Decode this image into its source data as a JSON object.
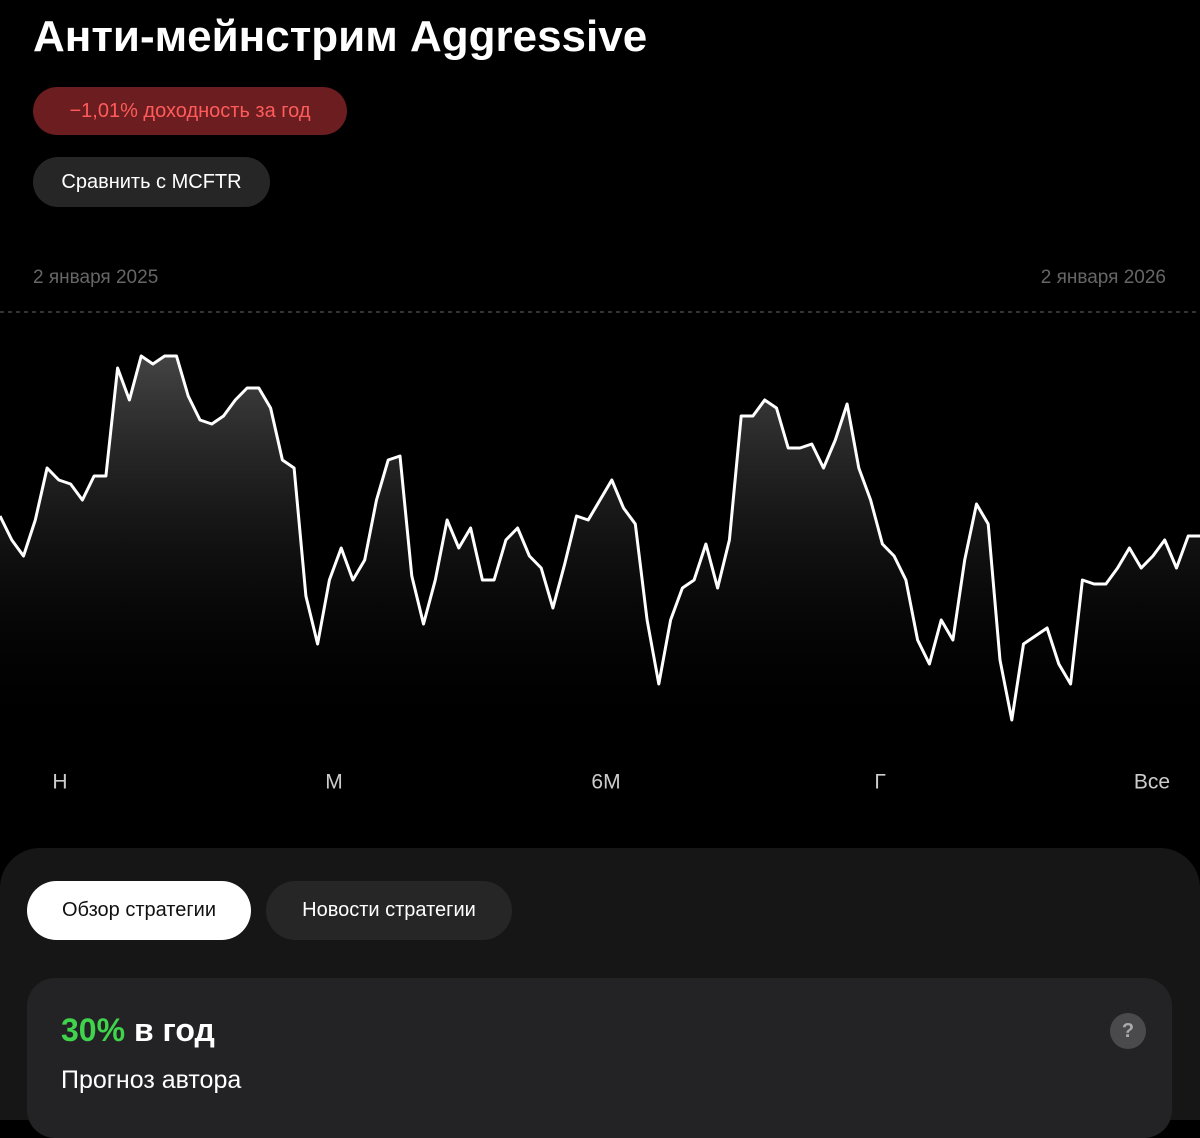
{
  "header": {
    "title": "Анти-мейнстрим Aggressive",
    "return_badge": "−1,01% доходность за год",
    "compare_button": "Сравнить с MCFTR"
  },
  "chart_data": {
    "type": "line",
    "date_labels": [
      "2 января 2025",
      "2 января 2026"
    ],
    "color": "#ffffff",
    "values": [
      56,
      50,
      46,
      55,
      68,
      65,
      64,
      60,
      66,
      66,
      93,
      85,
      96,
      94,
      96,
      96,
      86,
      80,
      79,
      81,
      85,
      88,
      88,
      83,
      70,
      68,
      36,
      24,
      40,
      48,
      40,
      45,
      60,
      70,
      71,
      41,
      29,
      40,
      55,
      48,
      53,
      40,
      40,
      50,
      53,
      46,
      43,
      33,
      44,
      56,
      55,
      60,
      65,
      58,
      54,
      30,
      14,
      30,
      38,
      40,
      49,
      38,
      50,
      81,
      81,
      85,
      83,
      73,
      73,
      74,
      68,
      75,
      84,
      68,
      60,
      49,
      46,
      40,
      25,
      19,
      30,
      25,
      45,
      59,
      54,
      20,
      5,
      24,
      26,
      28,
      19,
      14,
      40,
      39,
      39,
      43,
      48,
      43,
      46,
      50,
      43,
      51,
      51
    ],
    "ylim": [
      0,
      100
    ]
  },
  "periods": [
    "Н",
    "М",
    "6М",
    "Г",
    "Все"
  ],
  "tabs": [
    "Обзор стратегии",
    "Новости стратегии"
  ],
  "forecast": {
    "value": "30%",
    "unit": "в год",
    "caption": "Прогноз автора",
    "help": "?"
  }
}
